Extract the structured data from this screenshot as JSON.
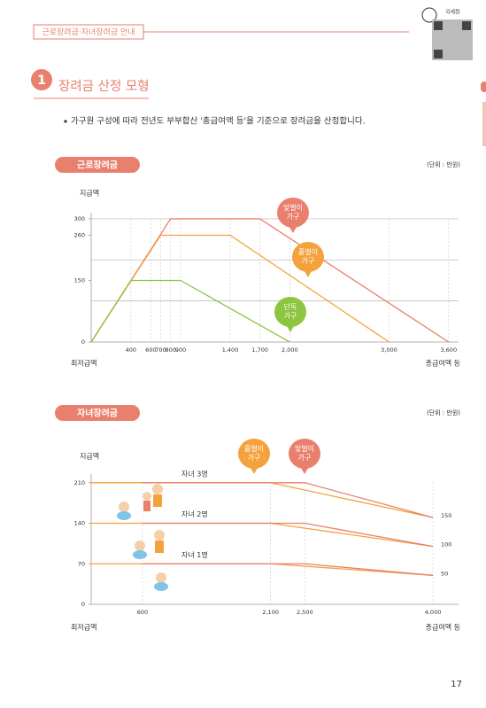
{
  "header": {
    "tag": "근로장려금·자녀장려금 안내",
    "logo": "국세청"
  },
  "section": {
    "number": "1",
    "title": "장려금 산정 모형",
    "bullet": "가구원 구성에 따라 전년도 부부합산 '총급여액 등'을 기준으로  장려금을 산정합니다."
  },
  "page_number": "17",
  "chart_data": [
    {
      "type": "line",
      "title": "근로장려금",
      "unit": "(단위 : 만원)",
      "y_label": "지급액",
      "x_start_label": "최저급액",
      "x_label": "총급여액 등",
      "xlim": [
        0,
        3700
      ],
      "ylim": [
        0,
        315
      ],
      "xticks": [
        400,
        600,
        700,
        800,
        900,
        {
          "value": 1400,
          "label": "1,400"
        },
        {
          "value": 1700,
          "label": "1,700"
        },
        {
          "value": 2000,
          "label": "2,000"
        },
        {
          "value": 3000,
          "label": "3,000"
        },
        {
          "value": 3600,
          "label": "3,600"
        }
      ],
      "yticks": [
        0,
        150,
        260,
        300
      ],
      "grid_lines": [
        100,
        200,
        300
      ],
      "series": [
        {
          "name": "맞벌이 가구",
          "color": "#e9806e",
          "x": [
            0,
            800,
            1700,
            3600
          ],
          "values": [
            0,
            300,
            300,
            0
          ]
        },
        {
          "name": "홑벌이 가구",
          "color": "#f4a23c",
          "x": [
            0,
            700,
            1400,
            3000
          ],
          "values": [
            0,
            260,
            260,
            0
          ]
        },
        {
          "name": "단독 가구",
          "color": "#8dc540",
          "x": [
            0,
            400,
            900,
            2000
          ],
          "values": [
            0,
            150,
            150,
            0
          ]
        }
      ]
    },
    {
      "type": "line",
      "title": "자녀장려금",
      "unit": "(단위 : 만원)",
      "y_label": "지급액",
      "x_start_label": "최저급액",
      "x_label": "총급여액 등",
      "xlim": [
        0,
        4300
      ],
      "ylim": [
        0,
        225
      ],
      "xticks": [
        600,
        {
          "value": 2100,
          "label": "2,100"
        },
        {
          "value": 2500,
          "label": "2,500"
        },
        {
          "value": 4000,
          "label": "4,000"
        }
      ],
      "yticks": [
        0,
        70,
        140,
        210
      ],
      "line_labels": [
        "자녀 3명",
        "자녀 2명",
        "자녀 1명"
      ],
      "end_labels": true,
      "series": [
        {
          "name": "홑벌이 가구",
          "color": "#f4a23c",
          "x": [
            0,
            2100,
            4000
          ],
          "lines": [
            [
              210,
              210,
              150
            ],
            [
              140,
              140,
              100
            ],
            [
              70,
              70,
              50
            ]
          ]
        },
        {
          "name": "맞벌이 가구",
          "color": "#e9806e",
          "x": [
            600,
            2500,
            4000
          ],
          "lines": [
            [
              210,
              210,
              150
            ],
            [
              140,
              140,
              100
            ],
            [
              70,
              70,
              50
            ]
          ]
        }
      ]
    }
  ]
}
